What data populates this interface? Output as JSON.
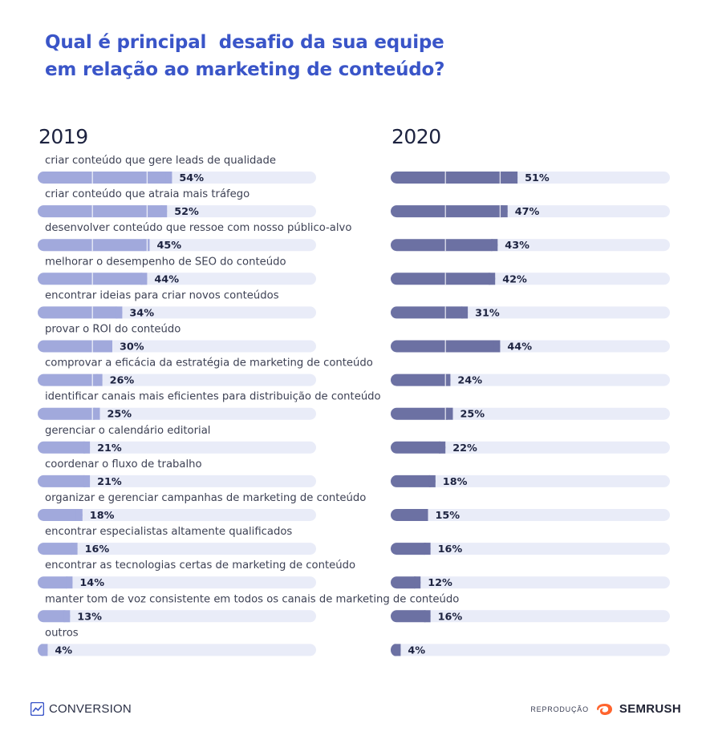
{
  "title_lines": [
    "Qual é principal  desafio da sua equipe",
    "em relação ao marketing de conteúdo?"
  ],
  "colors": {
    "bar_2019": "#a1a9dc",
    "bar_2020": "#6c71a3",
    "track": "#e9ecf8",
    "title": "#3a55c8",
    "label": "#3d4154",
    "value": "#1d2340"
  },
  "chart_data": {
    "type": "bar",
    "title": "Qual é principal  desafio da sua equipe em relação ao marketing de conteúdo?",
    "xlabel": "",
    "ylabel": "",
    "xlim": [
      0,
      100
    ],
    "categories": [
      "criar conteúdo que gere leads de qualidade",
      "criar conteúdo que atraia mais tráfego",
      "desenvolver conteúdo que ressoe com nosso público-alvo",
      "melhorar o desempenho de SEO do conteúdo",
      "encontrar ideias para criar novos conteúdos",
      "provar o ROI do conteúdo",
      "comprovar a eficácia da estratégia de marketing de conteúdo",
      "identificar canais mais eficientes para distribuição de conteúdo",
      "gerenciar o calendário editorial",
      "coordenar o fluxo de trabalho",
      "organizar e gerenciar campanhas de marketing de conteúdo",
      "encontrar especialistas altamente qualificados",
      "encontrar as tecnologias certas de marketing de conteúdo",
      "manter tom de voz consistente em todos os canais de marketing de conteúdo",
      "outros"
    ],
    "series": [
      {
        "name": "2019",
        "values": [
          54,
          52,
          45,
          44,
          34,
          30,
          26,
          25,
          21,
          21,
          18,
          16,
          14,
          13,
          4
        ],
        "labels": [
          "54%",
          "52%",
          "45%",
          "44%",
          "34%",
          "30%",
          "26%",
          "25%",
          "21%",
          "21%",
          "18%",
          "16%",
          "14%",
          "13%",
          "4%"
        ]
      },
      {
        "name": "2020",
        "values": [
          51,
          47,
          43,
          42,
          31,
          44,
          24,
          25,
          22,
          18,
          15,
          16,
          12,
          16,
          4
        ],
        "labels": [
          "51%",
          "47%",
          "43%",
          "42%",
          "31%",
          "44%",
          "24%",
          "25%",
          "22%",
          "18%",
          "15%",
          "16%",
          "12%",
          "16%",
          "4%"
        ]
      }
    ]
  },
  "footer": {
    "brand": "CONVERSION",
    "repro": "REPRODUÇÃO",
    "partner": "SEMRUSH"
  }
}
